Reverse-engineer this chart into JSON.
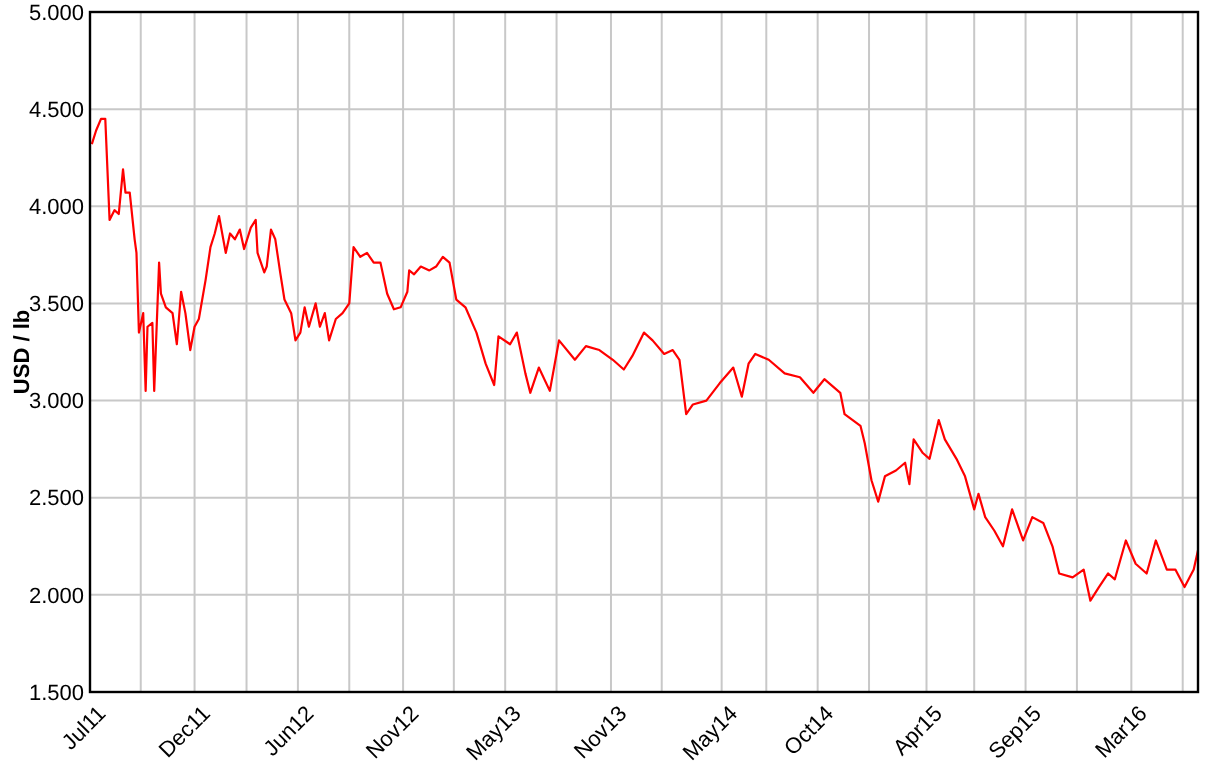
{
  "chart_data": {
    "type": "line",
    "ylabel": "USD / lb",
    "grid": true,
    "marker": "none",
    "line_style": "solid",
    "xlim": [
      "2011-07-03",
      "2016-06-18"
    ],
    "ylim": [
      1.5,
      5
    ],
    "yticks": [
      {
        "value": 1.5,
        "label": "1.500"
      },
      {
        "value": 2,
        "label": "2.000"
      },
      {
        "value": 2.5,
        "label": "2.500"
      },
      {
        "value": 3,
        "label": "3.000"
      },
      {
        "value": 3.5,
        "label": "3.500"
      },
      {
        "value": 4,
        "label": "4.000"
      },
      {
        "value": 4.5,
        "label": "4.500"
      },
      {
        "value": 5,
        "label": "5.000"
      }
    ],
    "xticks": [
      {
        "value": "2011-07-03",
        "label": "Jul11"
      },
      {
        "value": "2011-09-24",
        "label": null
      },
      {
        "value": "2011-12-21",
        "label": "Dec11"
      },
      {
        "value": "2012-03-15",
        "label": null
      },
      {
        "value": "2012-06-07",
        "label": "Jun12"
      },
      {
        "value": "2012-08-30",
        "label": null
      },
      {
        "value": "2012-11-26",
        "label": "Nov12"
      },
      {
        "value": "2013-02-17",
        "label": null
      },
      {
        "value": "2013-05-12",
        "label": "May13"
      },
      {
        "value": "2013-08-04",
        "label": null
      },
      {
        "value": "2013-11-01",
        "label": "Nov13"
      },
      {
        "value": "2014-01-23",
        "label": null
      },
      {
        "value": "2014-05-01",
        "label": "May14"
      },
      {
        "value": "2014-07-13",
        "label": null
      },
      {
        "value": "2014-10-05",
        "label": "Oct14"
      },
      {
        "value": "2014-12-28",
        "label": null
      },
      {
        "value": "2015-04-01",
        "label": "Apr15"
      },
      {
        "value": "2015-06-18",
        "label": null
      },
      {
        "value": "2015-09-10",
        "label": "Sep15"
      },
      {
        "value": "2015-12-03",
        "label": null
      },
      {
        "value": "2016-03-01",
        "label": "Mar16"
      },
      {
        "value": "2016-05-24",
        "label": null
      }
    ],
    "x": [
      "2011-07-06",
      "2011-07-13",
      "2011-07-21",
      "2011-07-28",
      "2011-08-04",
      "2011-08-12",
      "2011-08-19",
      "2011-08-26",
      "2011-08-30",
      "2011-09-06",
      "2011-09-14",
      "2011-09-17",
      "2011-09-21",
      "2011-09-28",
      "2011-10-02",
      "2011-10-05",
      "2011-10-13",
      "2011-10-16",
      "2011-10-24",
      "2011-10-27",
      "2011-11-04",
      "2011-11-15",
      "2011-11-22",
      "2011-11-29",
      "2011-12-06",
      "2011-12-14",
      "2011-12-21",
      "2011-12-28",
      "2012-01-08",
      "2012-01-16",
      "2012-01-23",
      "2012-01-30",
      "2012-02-10",
      "2012-02-17",
      "2012-02-25",
      "2012-03-04",
      "2012-03-11",
      "2012-03-22",
      "2012-03-30",
      "2012-04-02",
      "2012-04-13",
      "2012-04-17",
      "2012-04-24",
      "2012-05-01",
      "2012-05-09",
      "2012-05-16",
      "2012-05-27",
      "2012-06-03",
      "2012-06-11",
      "2012-06-18",
      "2012-06-25",
      "2012-07-06",
      "2012-07-13",
      "2012-07-21",
      "2012-07-28",
      "2012-08-08",
      "2012-08-19",
      "2012-08-30",
      "2012-09-06",
      "2012-09-17",
      "2012-09-28",
      "2012-10-09",
      "2012-10-20",
      "2012-10-31",
      "2012-11-11",
      "2012-11-22",
      "2012-12-03",
      "2012-12-06",
      "2012-12-14",
      "2012-12-25",
      "2013-01-08",
      "2013-01-19",
      "2013-01-30",
      "2013-02-10",
      "2013-02-21",
      "2013-03-08",
      "2013-03-26",
      "2013-04-10",
      "2013-04-24",
      "2013-05-01",
      "2013-05-20",
      "2013-05-31",
      "2013-06-14",
      "2013-06-22",
      "2013-07-06",
      "2013-07-24",
      "2013-08-08",
      "2013-09-03",
      "2013-09-21",
      "2013-10-13",
      "2013-11-04",
      "2013-11-22",
      "2013-12-06",
      "2013-12-25",
      "2014-01-08",
      "2014-01-27",
      "2014-02-10",
      "2014-02-21",
      "2014-03-04",
      "2014-03-15",
      "2014-04-06",
      "2014-04-28",
      "2014-05-20",
      "2014-06-03",
      "2014-06-14",
      "2014-06-25",
      "2014-07-17",
      "2014-08-12",
      "2014-09-06",
      "2014-09-28",
      "2014-10-16",
      "2014-11-11",
      "2014-11-18",
      "2014-12-14",
      "2014-12-21",
      "2015-01-01",
      "2015-01-12",
      "2015-01-23",
      "2015-02-10",
      "2015-02-25",
      "2015-03-04",
      "2015-03-11",
      "2015-03-26",
      "2015-04-06",
      "2015-04-21",
      "2015-05-01",
      "2015-05-20",
      "2015-06-03",
      "2015-06-18",
      "2015-06-25",
      "2015-07-06",
      "2015-07-21",
      "2015-08-04",
      "2015-08-19",
      "2015-09-06",
      "2015-09-21",
      "2015-10-09",
      "2015-10-24",
      "2015-11-04",
      "2015-11-26",
      "2015-12-14",
      "2015-12-25",
      "2016-01-08",
      "2016-01-23",
      "2016-02-03",
      "2016-02-21",
      "2016-03-08",
      "2016-03-26",
      "2016-04-10",
      "2016-04-28",
      "2016-05-12",
      "2016-05-27",
      "2016-06-11",
      "2016-06-18"
    ],
    "series": [
      {
        "color": "#ff0000",
        "values": [
          4.32,
          4.39,
          4.45,
          4.45,
          3.93,
          3.98,
          3.96,
          4.19,
          4.07,
          4.07,
          3.83,
          3.76,
          3.35,
          3.45,
          3.05,
          3.38,
          3.4,
          3.05,
          3.71,
          3.55,
          3.48,
          3.45,
          3.29,
          3.56,
          3.45,
          3.26,
          3.38,
          3.42,
          3.62,
          3.79,
          3.86,
          3.95,
          3.76,
          3.86,
          3.83,
          3.88,
          3.78,
          3.89,
          3.93,
          3.76,
          3.66,
          3.69,
          3.88,
          3.83,
          3.66,
          3.52,
          3.45,
          3.31,
          3.35,
          3.48,
          3.38,
          3.5,
          3.38,
          3.45,
          3.31,
          3.42,
          3.45,
          3.5,
          3.79,
          3.74,
          3.76,
          3.71,
          3.71,
          3.55,
          3.47,
          3.48,
          3.56,
          3.67,
          3.65,
          3.69,
          3.67,
          3.69,
          3.74,
          3.71,
          3.52,
          3.48,
          3.35,
          3.19,
          3.08,
          3.33,
          3.29,
          3.35,
          3.14,
          3.04,
          3.17,
          3.05,
          3.31,
          3.21,
          3.28,
          3.26,
          3.21,
          3.16,
          3.23,
          3.35,
          3.31,
          3.24,
          3.26,
          3.21,
          2.93,
          2.98,
          3.0,
          3.09,
          3.17,
          3.02,
          3.19,
          3.24,
          3.21,
          3.14,
          3.12,
          3.04,
          3.11,
          3.04,
          2.93,
          2.87,
          2.78,
          2.59,
          2.48,
          2.61,
          2.64,
          2.68,
          2.57,
          2.8,
          2.73,
          2.7,
          2.9,
          2.8,
          2.7,
          2.61,
          2.44,
          2.52,
          2.4,
          2.33,
          2.25,
          2.44,
          2.28,
          2.4,
          2.37,
          2.25,
          2.11,
          2.09,
          2.13,
          1.97,
          2.04,
          2.11,
          2.08,
          2.28,
          2.16,
          2.11,
          2.28,
          2.13,
          2.13,
          2.04,
          2.13,
          2.23
        ]
      }
    ]
  }
}
